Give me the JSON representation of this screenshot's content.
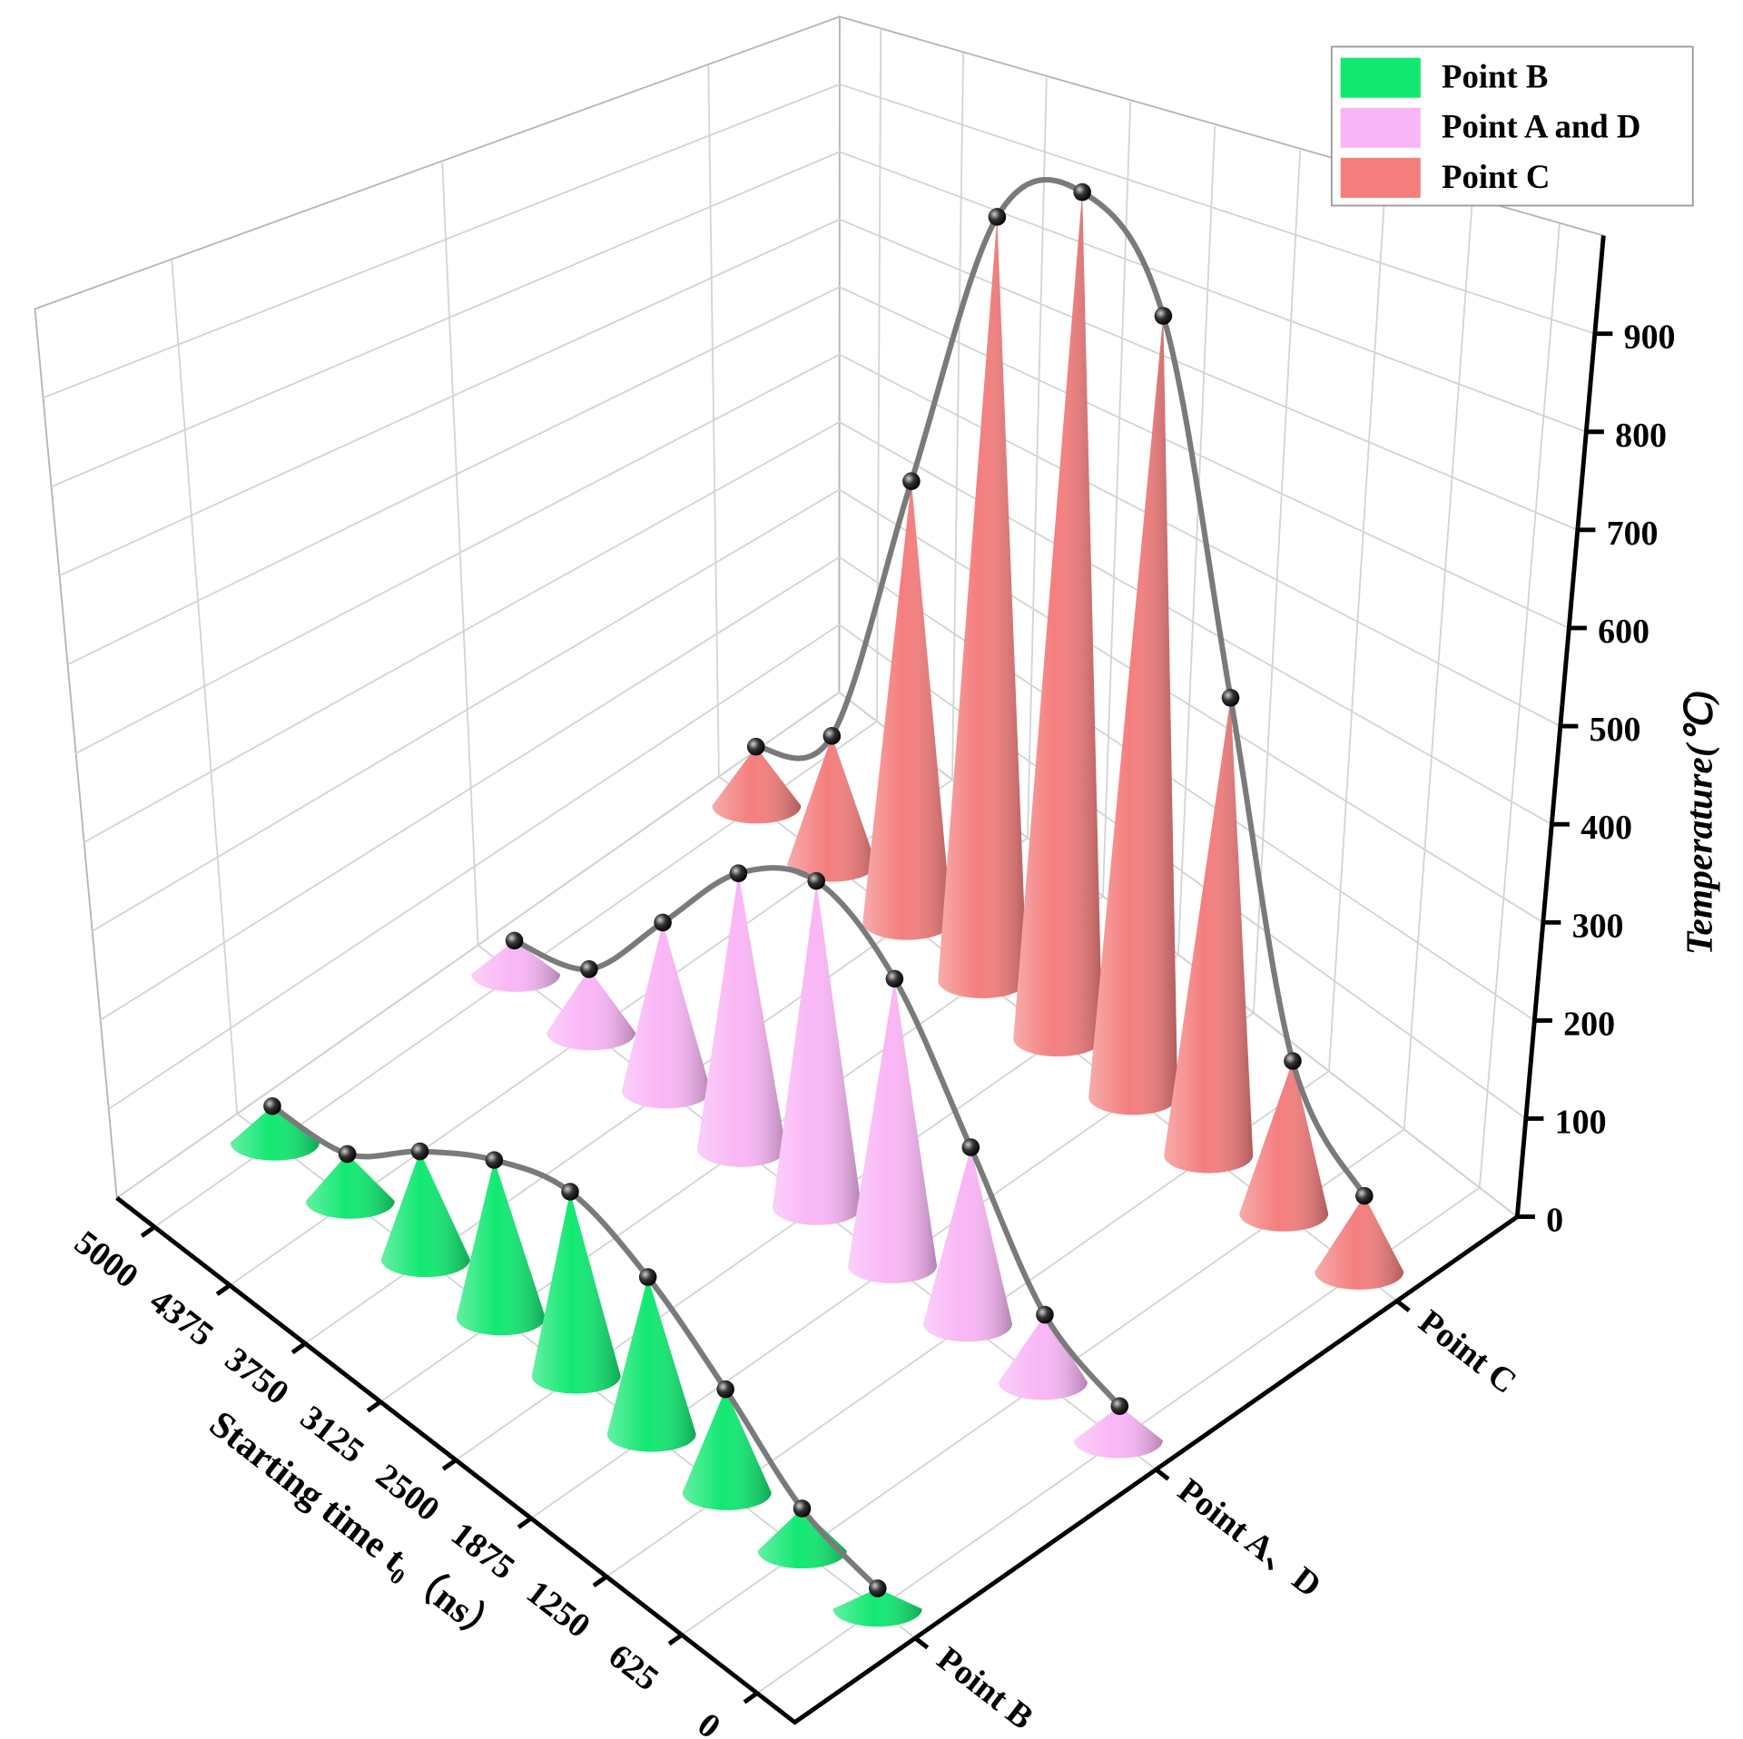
{
  "chart_data": {
    "type": "cone",
    "categories": [
      0,
      625,
      1250,
      1875,
      2500,
      3125,
      3750,
      4375,
      5000
    ],
    "xlabel": "Starting time t₀（ns）",
    "series_axis": [
      "Point B",
      "Point A、D",
      "Point C"
    ],
    "zlabel": "Temperature(℃)",
    "zlim": [
      0,
      1000
    ],
    "zticks": [
      0,
      100,
      200,
      300,
      400,
      500,
      600,
      700,
      800,
      900
    ],
    "grid": true,
    "legend": "upper right",
    "series": [
      {
        "name": "Point B",
        "color": "#12e872",
        "values": [
          18,
          38,
          96,
          151,
          183,
          162,
          115,
          52,
          42
        ]
      },
      {
        "name": "Point A and D",
        "color": "#f9b6f6",
        "values": [
          32,
          65,
          176,
          296,
          349,
          306,
          194,
          76,
          42
        ]
      },
      {
        "name": "Point C",
        "color": "#f47e7e",
        "values": [
          76,
          158,
          491,
          870,
          980,
          920,
          554,
          168,
          81
        ]
      }
    ]
  }
}
